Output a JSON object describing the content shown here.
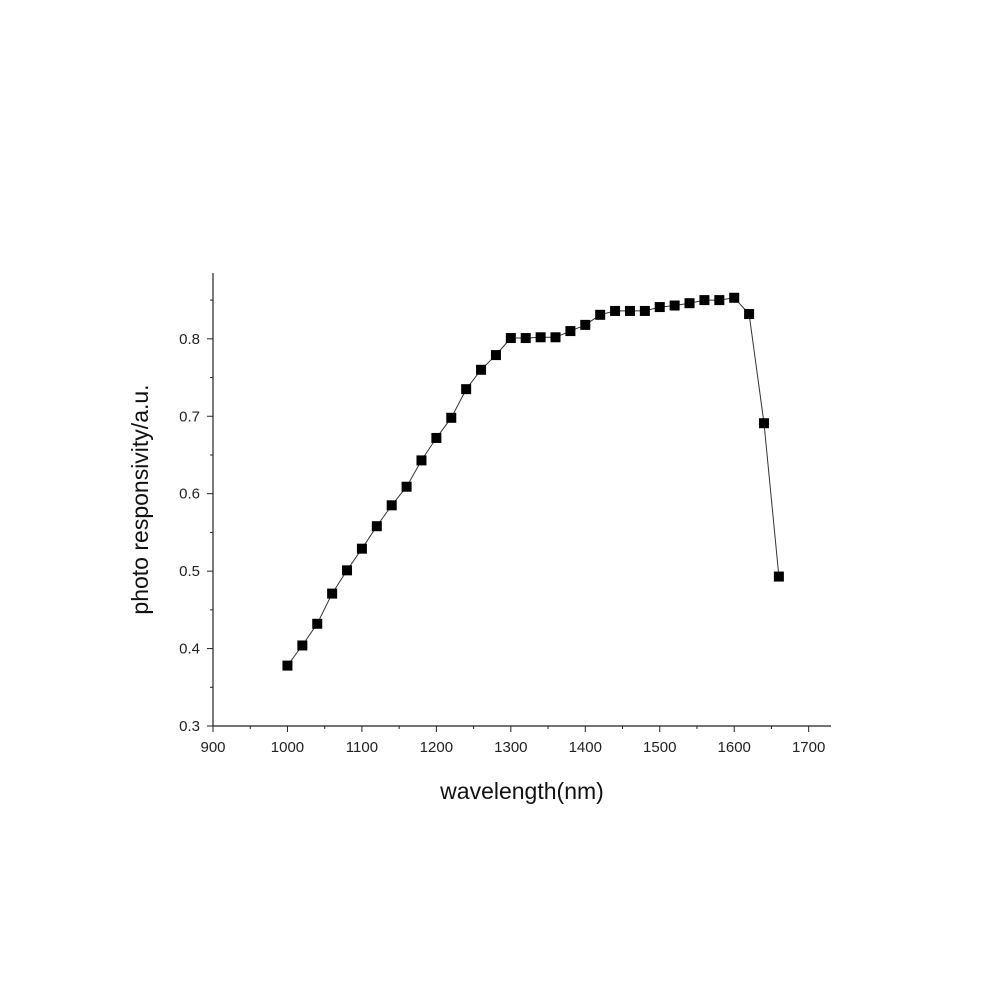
{
  "chart_data": {
    "type": "line",
    "title": "",
    "xlabel": "wavelength(nm)",
    "ylabel": "photo responsivity/a.u.",
    "xlim": [
      900,
      1730
    ],
    "ylim": [
      0.3,
      0.885
    ],
    "x_ticks": [
      900,
      1000,
      1100,
      1200,
      1300,
      1400,
      1500,
      1600,
      1700
    ],
    "y_ticks": [
      0.3,
      0.4,
      0.5,
      0.6,
      0.7,
      0.8
    ],
    "grid": false,
    "legend": "none",
    "marker": "square",
    "series": [
      {
        "x": [
          1000,
          1020,
          1040,
          1060,
          1080,
          1100,
          1120,
          1140,
          1160,
          1180,
          1200,
          1220,
          1240,
          1260,
          1280,
          1300,
          1320,
          1340,
          1360,
          1380,
          1400,
          1420,
          1440,
          1460,
          1480,
          1500,
          1520,
          1540,
          1560,
          1580,
          1600,
          1620,
          1640,
          1660
        ],
        "y": [
          0.378,
          0.404,
          0.432,
          0.471,
          0.501,
          0.529,
          0.558,
          0.585,
          0.609,
          0.643,
          0.672,
          0.698,
          0.735,
          0.76,
          0.779,
          0.801,
          0.801,
          0.802,
          0.802,
          0.81,
          0.818,
          0.831,
          0.836,
          0.836,
          0.836,
          0.841,
          0.843,
          0.846,
          0.85,
          0.85,
          0.853,
          0.832,
          0.691,
          0.493
        ]
      }
    ]
  },
  "colors": {
    "marker": "#000000",
    "line": "#333333",
    "axis": "#222222"
  }
}
